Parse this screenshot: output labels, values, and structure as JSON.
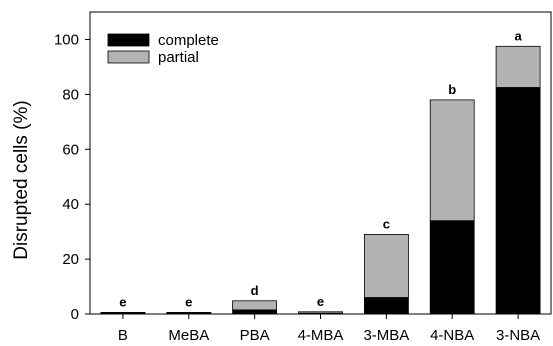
{
  "chart_data": {
    "type": "bar",
    "stacked": true,
    "title": "",
    "xlabel": "",
    "ylabel": "Disrupted cells (%)",
    "ylim": [
      0,
      110
    ],
    "yticks": [
      0,
      20,
      40,
      60,
      80,
      100
    ],
    "grid": false,
    "legend_position": "top-left",
    "categories": [
      "B",
      "MeBA",
      "PBA",
      "4-MBA",
      "3-MBA",
      "4-NBA",
      "3-NBA"
    ],
    "series": [
      {
        "name": "complete",
        "color": "#000000",
        "values": [
          0.3,
          0.3,
          1.5,
          0.3,
          6,
          34,
          82.5
        ]
      },
      {
        "name": "partial",
        "color": "#b3b3b3",
        "values": [
          0.3,
          0.3,
          3.3,
          0.5,
          23,
          44,
          15
        ]
      }
    ],
    "annotations": [
      "e",
      "e",
      "d",
      "e",
      "c",
      "b",
      "a"
    ]
  }
}
